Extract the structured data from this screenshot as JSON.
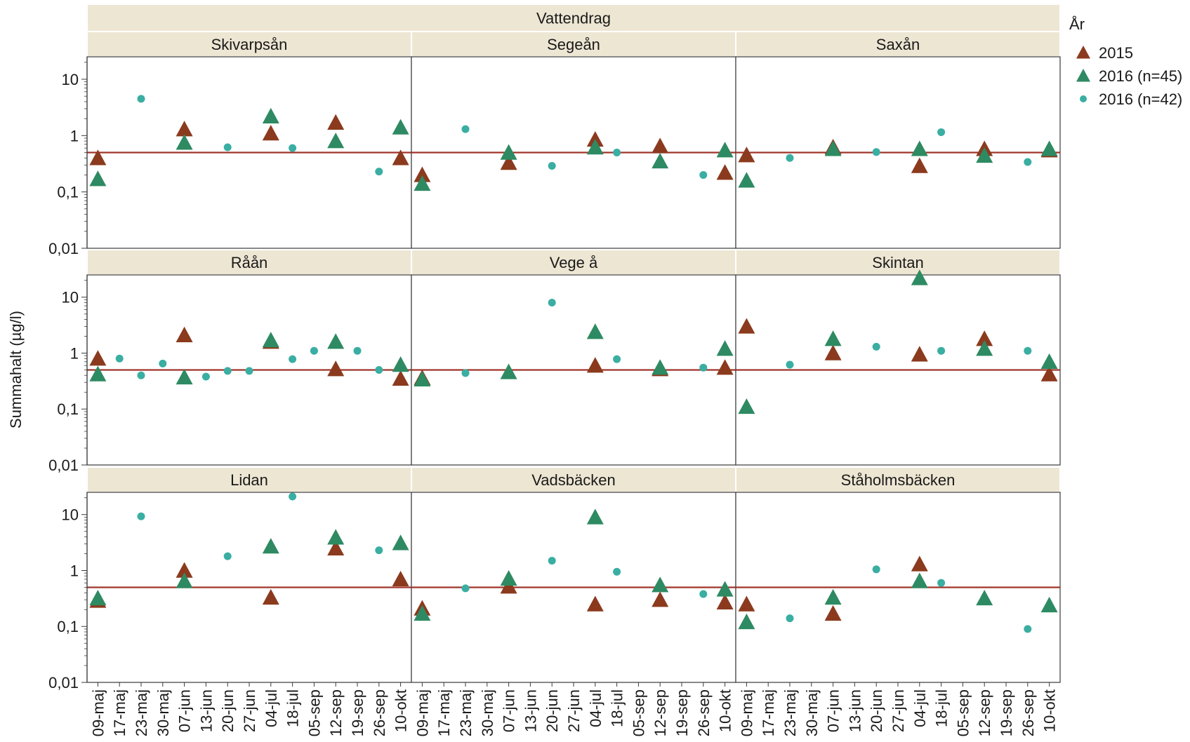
{
  "chart_data": {
    "type": "scatter",
    "facet_header": "Vattendrag",
    "ylabel": "Summahalt (µg/l)",
    "y_scale": "log",
    "ylim": [
      0.01,
      25
    ],
    "y_ticks": [
      0.01,
      0.1,
      1,
      10
    ],
    "y_tick_labels": [
      "0,01",
      "0,1",
      "1",
      "10"
    ],
    "reference_line": 0.5,
    "categories": [
      "09-maj",
      "17-maj",
      "23-maj",
      "30-maj",
      "07-jun",
      "13-jun",
      "20-jun",
      "27-jun",
      "04-jul",
      "18-jul",
      "05-sep",
      "12-sep",
      "19-sep",
      "26-sep",
      "10-okt"
    ],
    "legend": {
      "title": "År",
      "items": [
        {
          "label": "2015",
          "marker": "triangle",
          "color": "#8b3a1e"
        },
        {
          "label": "2016 (n=45)",
          "marker": "triangle",
          "color": "#2e8a62"
        },
        {
          "label": "2016 (n=42)",
          "marker": "circle",
          "color": "#3aaea2"
        }
      ]
    },
    "colors": {
      "line": "#a0342a",
      "s2015": "#8b3a1e",
      "s2016a": "#2e8a62",
      "s2016b": "#3aaea2"
    },
    "panels": [
      {
        "name": "Skivarpsån",
        "s2015": [
          [
            "09-maj",
            0.4
          ],
          [
            "07-jun",
            1.3
          ],
          [
            "04-jul",
            1.1
          ],
          [
            "12-sep",
            1.7
          ],
          [
            "10-okt",
            0.4
          ]
        ],
        "s2016a": [
          [
            "09-maj",
            0.17
          ],
          [
            "07-jun",
            0.75
          ],
          [
            "04-jul",
            2.2
          ],
          [
            "12-sep",
            0.8
          ],
          [
            "10-okt",
            1.4
          ]
        ],
        "s2016b": [
          [
            "23-maj",
            4.5
          ],
          [
            "20-jun",
            0.62
          ],
          [
            "18-jul",
            0.6
          ],
          [
            "26-sep",
            0.23
          ]
        ]
      },
      {
        "name": "Segeån",
        "s2015": [
          [
            "09-maj",
            0.2
          ],
          [
            "07-jun",
            0.33
          ],
          [
            "04-jul",
            0.85
          ],
          [
            "12-sep",
            0.65
          ],
          [
            "10-okt",
            0.22
          ]
        ],
        "s2016a": [
          [
            "09-maj",
            0.14
          ],
          [
            "07-jun",
            0.5
          ],
          [
            "04-jul",
            0.62
          ],
          [
            "12-sep",
            0.35
          ],
          [
            "10-okt",
            0.55
          ]
        ],
        "s2016b": [
          [
            "23-maj",
            1.3
          ],
          [
            "20-jun",
            0.29
          ],
          [
            "18-jul",
            0.5
          ],
          [
            "26-sep",
            0.2
          ]
        ]
      },
      {
        "name": "Saxån",
        "s2015": [
          [
            "09-maj",
            0.45
          ],
          [
            "07-jun",
            0.62
          ],
          [
            "04-jul",
            0.29
          ],
          [
            "12-sep",
            0.58
          ],
          [
            "10-okt",
            0.55
          ]
        ],
        "s2016a": [
          [
            "09-maj",
            0.16
          ],
          [
            "07-jun",
            0.58
          ],
          [
            "04-jul",
            0.58
          ],
          [
            "12-sep",
            0.44
          ],
          [
            "10-okt",
            0.58
          ]
        ],
        "s2016b": [
          [
            "23-maj",
            0.4
          ],
          [
            "20-jun",
            0.51
          ],
          [
            "18-jul",
            1.15
          ],
          [
            "26-sep",
            0.34
          ]
        ]
      },
      {
        "name": "Råån",
        "s2015": [
          [
            "09-maj",
            0.8
          ],
          [
            "07-jun",
            2.1
          ],
          [
            "04-jul",
            1.6
          ],
          [
            "12-sep",
            0.52
          ],
          [
            "10-okt",
            0.35
          ]
        ],
        "s2016a": [
          [
            "09-maj",
            0.42
          ],
          [
            "07-jun",
            0.37
          ],
          [
            "04-jul",
            1.7
          ],
          [
            "12-sep",
            1.6
          ],
          [
            "10-okt",
            0.62
          ]
        ],
        "s2016b": [
          [
            "17-maj",
            0.8
          ],
          [
            "23-maj",
            0.4
          ],
          [
            "30-maj",
            0.65
          ],
          [
            "13-jun",
            0.38
          ],
          [
            "20-jun",
            0.48
          ],
          [
            "27-jun",
            0.48
          ],
          [
            "18-jul",
            0.78
          ],
          [
            "05-sep",
            1.1
          ],
          [
            "19-sep",
            1.1
          ],
          [
            "26-sep",
            0.5
          ]
        ]
      },
      {
        "name": "Vege å",
        "s2015": [
          [
            "09-maj",
            0.36
          ],
          [
            "04-jul",
            0.6
          ],
          [
            "12-sep",
            0.52
          ],
          [
            "10-okt",
            0.55
          ]
        ],
        "s2016a": [
          [
            "09-maj",
            0.34
          ],
          [
            "07-jun",
            0.46
          ],
          [
            "04-jul",
            2.4
          ],
          [
            "12-sep",
            0.55
          ],
          [
            "10-okt",
            1.2
          ]
        ],
        "s2016b": [
          [
            "23-maj",
            0.44
          ],
          [
            "20-jun",
            8
          ],
          [
            "18-jul",
            0.78
          ],
          [
            "26-sep",
            0.55
          ]
        ]
      },
      {
        "name": "Skintan",
        "s2015": [
          [
            "09-maj",
            3
          ],
          [
            "07-jun",
            1
          ],
          [
            "04-jul",
            0.95
          ],
          [
            "12-sep",
            1.8
          ],
          [
            "10-okt",
            0.42
          ]
        ],
        "s2016a": [
          [
            "09-maj",
            0.11
          ],
          [
            "07-jun",
            1.8
          ],
          [
            "04-jul",
            22
          ],
          [
            "12-sep",
            1.2
          ],
          [
            "10-okt",
            0.7
          ]
        ],
        "s2016b": [
          [
            "23-maj",
            0.62
          ],
          [
            "20-jun",
            1.3
          ],
          [
            "18-jul",
            1.1
          ],
          [
            "26-sep",
            1.1
          ]
        ]
      },
      {
        "name": "Lidan",
        "s2015": [
          [
            "09-maj",
            0.29
          ],
          [
            "07-jun",
            1
          ],
          [
            "04-jul",
            0.33
          ],
          [
            "12-sep",
            2.5
          ],
          [
            "10-okt",
            0.7
          ]
        ],
        "s2016a": [
          [
            "09-maj",
            0.32
          ],
          [
            "07-jun",
            0.65
          ],
          [
            "04-jul",
            2.7
          ],
          [
            "12-sep",
            3.9
          ],
          [
            "10-okt",
            3.1
          ]
        ],
        "s2016b": [
          [
            "23-maj",
            9.3
          ],
          [
            "20-jun",
            1.8
          ],
          [
            "18-jul",
            21
          ],
          [
            "26-sep",
            2.3
          ]
        ]
      },
      {
        "name": "Vadsbäcken",
        "s2015": [
          [
            "09-maj",
            0.21
          ],
          [
            "07-jun",
            0.52
          ],
          [
            "04-jul",
            0.25
          ],
          [
            "12-sep",
            0.3
          ],
          [
            "10-okt",
            0.27
          ]
        ],
        "s2016a": [
          [
            "09-maj",
            0.17
          ],
          [
            "07-jun",
            0.72
          ],
          [
            "04-jul",
            9
          ],
          [
            "12-sep",
            0.55
          ],
          [
            "10-okt",
            0.46
          ]
        ],
        "s2016b": [
          [
            "23-maj",
            0.48
          ],
          [
            "20-jun",
            1.5
          ],
          [
            "18-jul",
            0.95
          ],
          [
            "26-sep",
            0.38
          ]
        ]
      },
      {
        "name": "Ståholmsbäcken",
        "s2015": [
          [
            "09-maj",
            0.25
          ],
          [
            "07-jun",
            0.17
          ],
          [
            "04-jul",
            1.3
          ]
        ],
        "s2016a": [
          [
            "09-maj",
            0.12
          ],
          [
            "07-jun",
            0.33
          ],
          [
            "04-jul",
            0.65
          ],
          [
            "12-sep",
            0.32
          ],
          [
            "10-okt",
            0.24
          ]
        ],
        "s2016b": [
          [
            "23-maj",
            0.14
          ],
          [
            "20-jun",
            1.05
          ],
          [
            "18-jul",
            0.6
          ],
          [
            "26-sep",
            0.09
          ]
        ]
      }
    ]
  }
}
